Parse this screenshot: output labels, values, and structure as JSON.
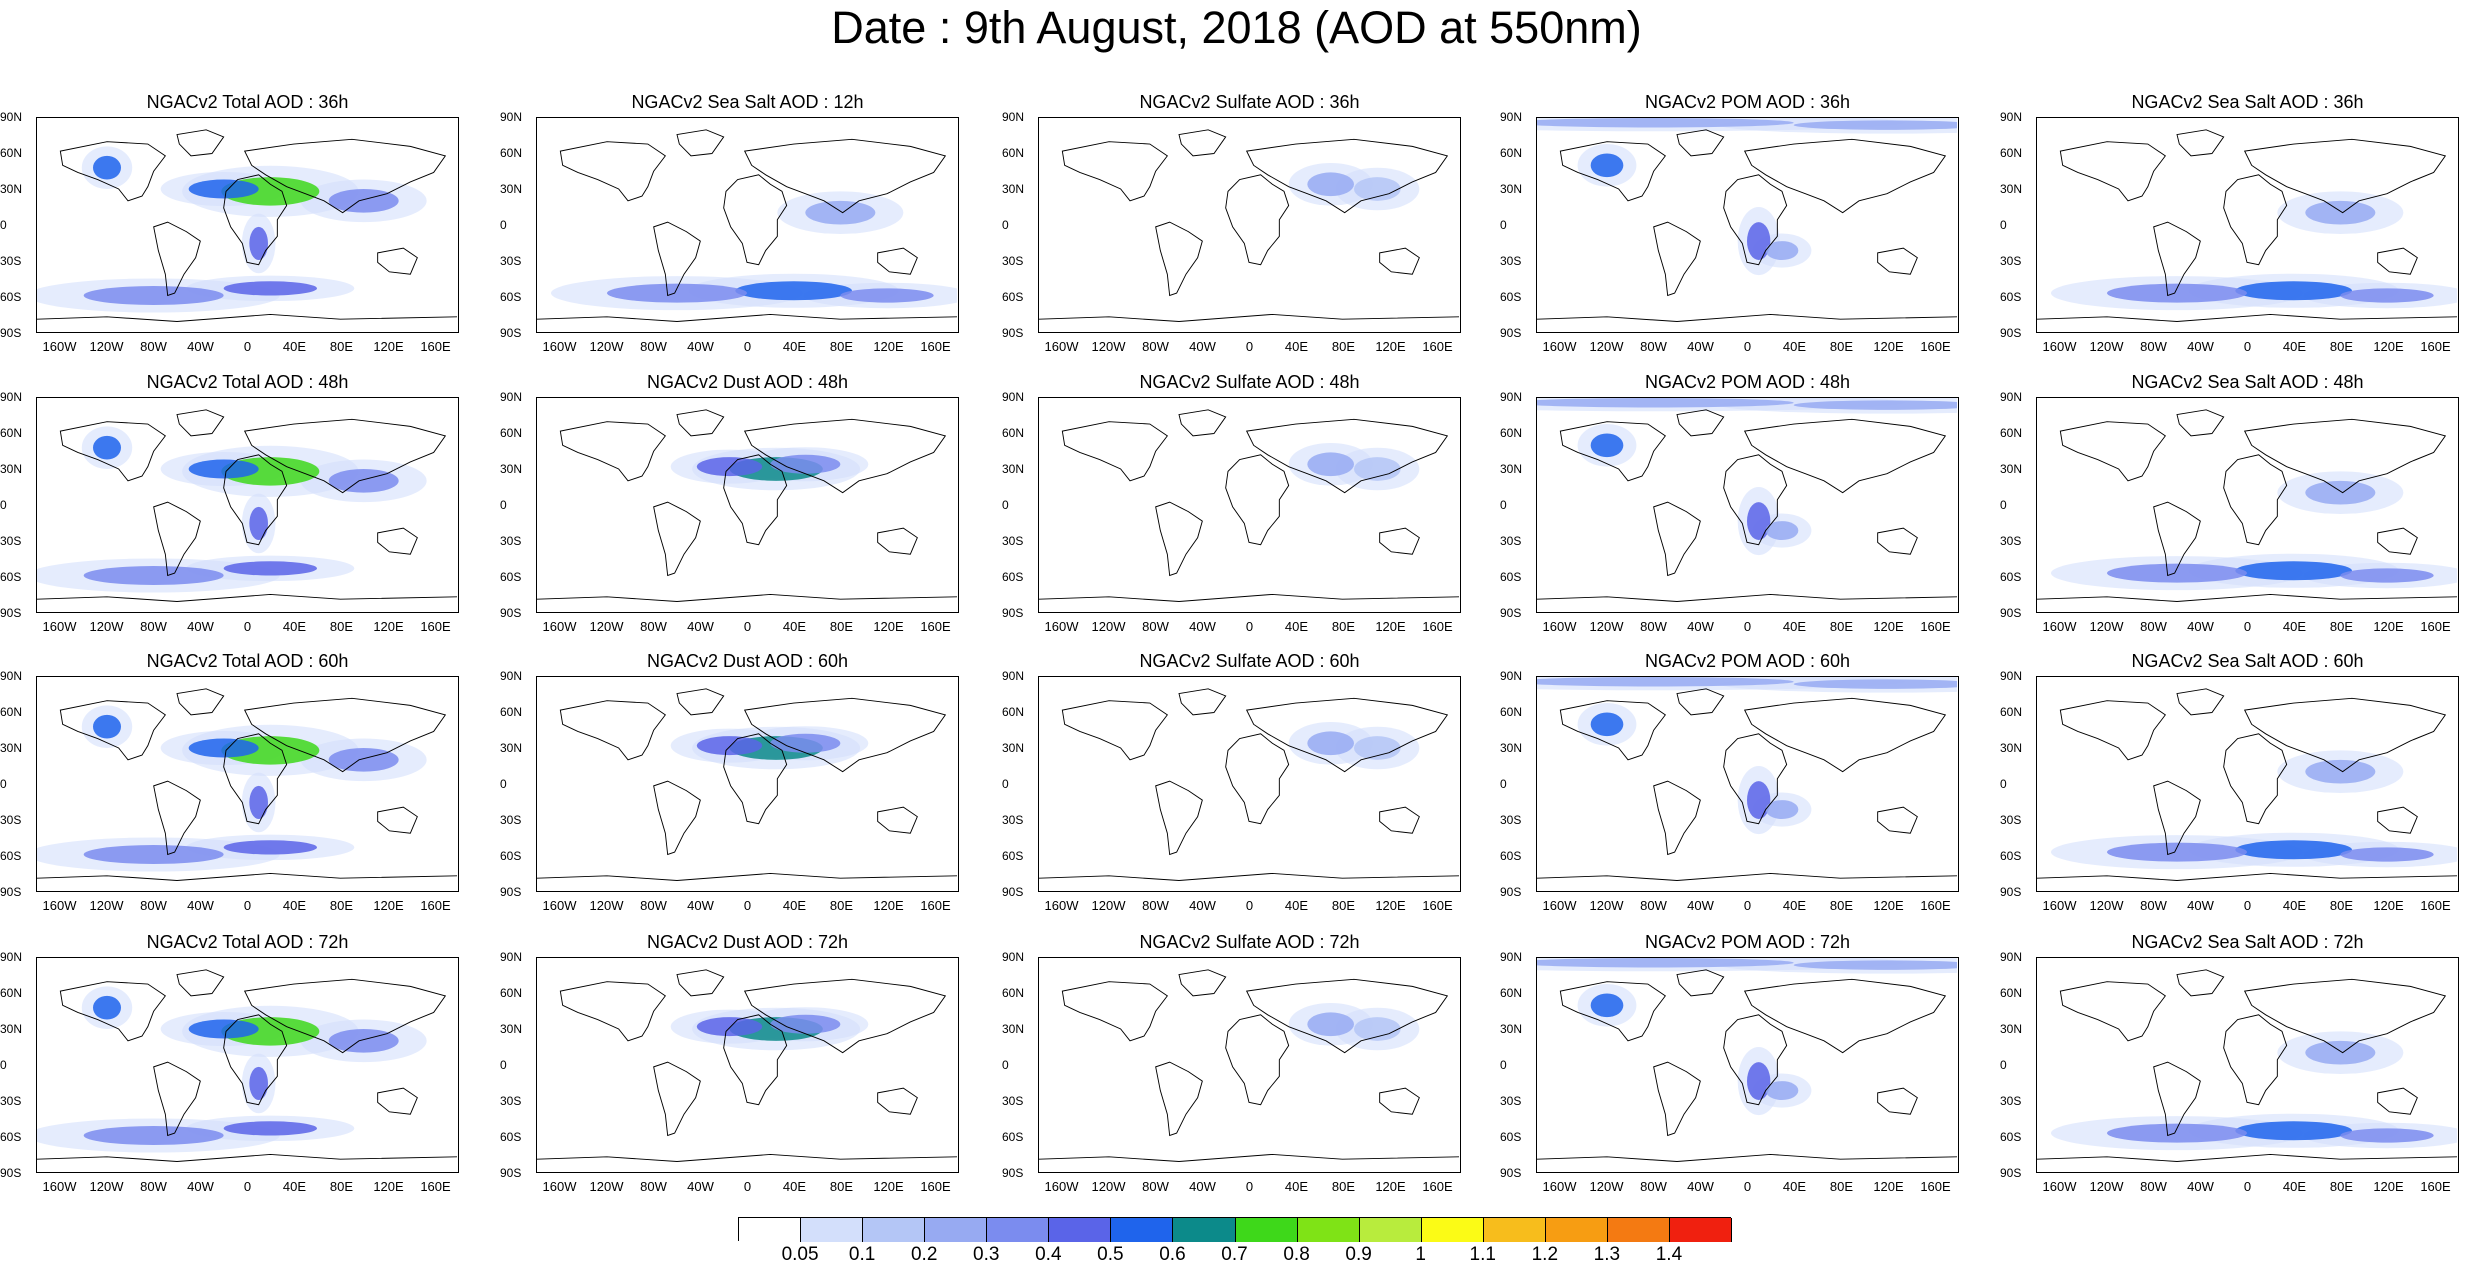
{
  "title": "Date : 9th August, 2018 (AOD at 550nm)",
  "lat_labels": [
    "90N",
    "60N",
    "30N",
    "0",
    "30S",
    "60S",
    "90S"
  ],
  "lon_labels": [
    "160W",
    "120W",
    "80W",
    "40W",
    "0",
    "40E",
    "80E",
    "120E",
    "160E"
  ],
  "panels": [
    [
      "NGACv2 Total AOD : 36h",
      "NGACv2 Sea Salt  AOD : 12h",
      "NGACv2 Sulfate AOD : 36h",
      "NGACv2 POM AOD : 36h",
      "NGACv2 Sea Salt  AOD : 36h"
    ],
    [
      "NGACv2 Total AOD : 48h",
      "NGACv2 Dust AOD : 48h",
      "NGACv2 Sulfate AOD : 48h",
      "NGACv2 POM AOD : 48h",
      "NGACv2 Sea Salt  AOD : 48h"
    ],
    [
      "NGACv2 Total AOD : 60h",
      "NGACv2 Dust AOD : 60h",
      "NGACv2 Sulfate AOD : 60h",
      "NGACv2 POM AOD : 60h",
      "NGACv2 Sea Salt  AOD : 60h"
    ],
    [
      "NGACv2 Total AOD : 72h",
      "NGACv2 Dust AOD : 72h",
      "NGACv2 Sulfate AOD : 72h",
      "NGACv2 POM AOD : 72h",
      "NGACv2 Sea Salt  AOD : 72h"
    ]
  ],
  "colorbar": {
    "colors": [
      "#ffffff",
      "#d3dffb",
      "#b4c6f6",
      "#97aaf2",
      "#7b8cef",
      "#5a64e8",
      "#1f64ec",
      "#0c8a8a",
      "#3ed81a",
      "#7fe316",
      "#b8ec3d",
      "#fbfb16",
      "#f7bd1c",
      "#f79d12",
      "#f47a12",
      "#f0200f"
    ],
    "labels": [
      "0.05",
      "0.1",
      "0.2",
      "0.3",
      "0.4",
      "0.5",
      "0.6",
      "0.7",
      "0.8",
      "0.9",
      "1",
      "1.1",
      "1.2",
      "1.3",
      "1.4"
    ]
  }
}
